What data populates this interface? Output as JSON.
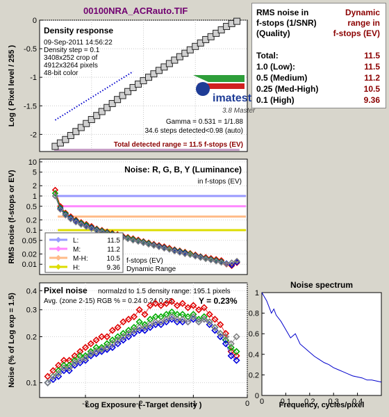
{
  "title": "00100NRA_ACRauto.TIF",
  "colors": {
    "background": "#d8d6cc",
    "plot_bg": "#ffffff",
    "red": "#e00000",
    "green": "#00aa00",
    "blue": "#0000dd",
    "luminance": "#808080",
    "dark_red_text": "#8b0000",
    "title_purple": "#700070",
    "imatest_blue": "#1e3c96"
  },
  "noise_table": {
    "header_left": [
      "RMS noise in",
      "f-stops (1/SNR)",
      "(Quality)"
    ],
    "header_right": [
      "Dynamic",
      "range in",
      "f-stops (EV)"
    ],
    "rows": [
      {
        "label": "Total:",
        "value": "11.5"
      },
      {
        "label": "1.0  (Low):",
        "value": "11.5"
      },
      {
        "label": "0.5  (Medium)",
        "value": "11.2"
      },
      {
        "label": "0.25 (Med-High)",
        "value": "10.5"
      },
      {
        "label": "0.1  (High)",
        "value": "9.36"
      }
    ]
  },
  "chart_data": [
    {
      "type": "line",
      "id": "density_response",
      "title": "Density response",
      "info": [
        "09-Sep-2011 14:56:22",
        "Density step = 0.1",
        "3408x252 crop of",
        "4912x3264 pixels",
        "48-bit color"
      ],
      "ylabel": "Log ( Pixel level / 255 )",
      "xlim": [
        -4,
        0
      ],
      "ylim": [
        -2.3,
        0
      ],
      "yticks": [
        0,
        -0.5,
        -1,
        -1.5,
        -2
      ],
      "yticklabels": [
        "0",
        "-0.5",
        "-1",
        "-1.5",
        "-2"
      ],
      "gamma_text": "Gamma = 0.531 = 1/1.88",
      "steps_text": "34.6 steps detected<0.98 (auto)",
      "range_text": "Total detected range = 11.5 f-stops (EV)",
      "logo_text": "imatest",
      "version_text": "3.8  Master",
      "series": [
        {
          "style": "squares",
          "x": [
            -3.7,
            -3.6,
            -3.5,
            -3.4,
            -3.3,
            -3.2,
            -3.1,
            -3.0,
            -2.9,
            -2.8,
            -2.7,
            -2.6,
            -2.5,
            -2.4,
            -2.3,
            -2.2,
            -2.1,
            -2.0,
            -1.9,
            -1.8,
            -1.7,
            -1.6,
            -1.5,
            -1.4,
            -1.3,
            -1.2,
            -1.1,
            -1.0,
            -0.9,
            -0.8,
            -0.7,
            -0.6,
            -0.5,
            -0.4,
            -0.3,
            -0.2
          ],
          "y": [
            -2.21,
            -2.15,
            -2.09,
            -2.02,
            -1.95,
            -1.88,
            -1.81,
            -1.74,
            -1.67,
            -1.6,
            -1.53,
            -1.46,
            -1.39,
            -1.32,
            -1.25,
            -1.18,
            -1.12,
            -1.06,
            -1.0,
            -0.94,
            -0.88,
            -0.82,
            -0.76,
            -0.7,
            -0.64,
            -0.58,
            -0.52,
            -0.46,
            -0.4,
            -0.34,
            -0.29,
            -0.23,
            -0.17,
            -0.11,
            -0.06,
            -0.02
          ]
        },
        {
          "style": "dotted",
          "x": [
            -3.7,
            -2.2
          ],
          "y": [
            -1.75,
            -0.9
          ]
        }
      ]
    },
    {
      "type": "scatter",
      "id": "rms_noise",
      "title": "Noise: R, G, B, Y (Luminance)",
      "subtitle": "in f-stops (EV)",
      "ylabel": "RMS noise (f-stops or EV)",
      "yscale": "log",
      "xlim": [
        -4,
        0
      ],
      "ylim": [
        0.005,
        12
      ],
      "yticks": [
        10,
        5,
        2,
        1,
        0.5,
        0.2,
        0.1,
        0.05,
        0.02,
        0.01
      ],
      "yticklabels": [
        "10",
        "5",
        "2",
        "1",
        "0.5",
        "0.2",
        "0.1",
        "0.05",
        "0.02",
        "0.01"
      ],
      "ref_lines": [
        {
          "name": "L:",
          "value": "11.5",
          "level": 1.0,
          "color": "#9999ff"
        },
        {
          "name": "M:",
          "value": "11.2",
          "level": 0.5,
          "color": "#ff88ff"
        },
        {
          "name": "M-H:",
          "value": "10.5",
          "level": 0.25,
          "color": "#ffbb88"
        },
        {
          "name": "H:",
          "value": "9.36",
          "level": 0.1,
          "color": "#dddd00"
        }
      ],
      "legend_note_1": "f-stops (EV)",
      "legend_note_2": "Dynamic Range",
      "x": [
        -3.7,
        -3.6,
        -3.5,
        -3.4,
        -3.3,
        -3.2,
        -3.1,
        -3.0,
        -2.9,
        -2.8,
        -2.7,
        -2.6,
        -2.5,
        -2.4,
        -2.3,
        -2.2,
        -2.1,
        -2.0,
        -1.9,
        -1.8,
        -1.7,
        -1.6,
        -1.5,
        -1.4,
        -1.3,
        -1.2,
        -1.1,
        -1.0,
        -0.9,
        -0.8,
        -0.7,
        -0.6,
        -0.5,
        -0.4,
        -0.3,
        -0.2
      ],
      "series": [
        {
          "name": "R",
          "color": "#e00000",
          "y": [
            1.5,
            0.5,
            0.32,
            0.25,
            0.2,
            0.17,
            0.15,
            0.13,
            0.11,
            0.1,
            0.09,
            0.082,
            0.075,
            0.068,
            0.062,
            0.057,
            0.052,
            0.047,
            0.043,
            0.039,
            0.036,
            0.033,
            0.03,
            0.027,
            0.025,
            0.023,
            0.021,
            0.019,
            0.017,
            0.016,
            0.015,
            0.014,
            0.013,
            0.01,
            0.009,
            0.011
          ]
        },
        {
          "name": "G",
          "color": "#00aa00",
          "y": [
            1.2,
            0.45,
            0.3,
            0.23,
            0.19,
            0.16,
            0.14,
            0.12,
            0.105,
            0.095,
            0.086,
            0.078,
            0.071,
            0.064,
            0.059,
            0.054,
            0.049,
            0.045,
            0.041,
            0.037,
            0.034,
            0.031,
            0.028,
            0.026,
            0.024,
            0.022,
            0.02,
            0.018,
            0.0165,
            0.015,
            0.014,
            0.013,
            0.012,
            0.0105,
            0.0095,
            0.012
          ]
        },
        {
          "name": "B",
          "color": "#0000dd",
          "y": [
            1.0,
            0.42,
            0.28,
            0.22,
            0.18,
            0.15,
            0.13,
            0.115,
            0.1,
            0.09,
            0.082,
            0.074,
            0.068,
            0.062,
            0.056,
            0.051,
            0.047,
            0.043,
            0.039,
            0.036,
            0.033,
            0.03,
            0.027,
            0.025,
            0.023,
            0.021,
            0.019,
            0.0175,
            0.016,
            0.0145,
            0.0135,
            0.0125,
            0.0115,
            0.0105,
            0.0095,
            0.0115
          ]
        },
        {
          "name": "Y",
          "color": "#808080",
          "y": [
            1.0,
            0.4,
            0.27,
            0.21,
            0.17,
            0.145,
            0.125,
            0.11,
            0.097,
            0.088,
            0.08,
            0.072,
            0.066,
            0.06,
            0.055,
            0.05,
            0.046,
            0.042,
            0.038,
            0.035,
            0.032,
            0.029,
            0.027,
            0.024,
            0.022,
            0.02,
            0.019,
            0.017,
            0.0155,
            0.0143,
            0.0132,
            0.0122,
            0.0112,
            0.0102,
            0.0112,
            0.0125
          ]
        }
      ]
    },
    {
      "type": "scatter",
      "id": "pixel_noise",
      "title": "Pixel noise",
      "note": "normalzd to 1.5 density range: 195.1 pixels",
      "avg_text": "Avg. (zone 2-15) RGB % = 0.24  0.24  0.23;",
      "y_text": "Y = 0.23%",
      "ylabel": "Noise (% of Log exp = 1.5)",
      "xlabel": "Log Exposure ( -Target density )",
      "yscale": "log",
      "xlim": [
        -3.85,
        0
      ],
      "ylim": [
        0.08,
        0.45
      ],
      "xticks": [
        -3,
        -2,
        -1,
        0
      ],
      "xticklabels": [
        "-3",
        "-2",
        "-1",
        "0"
      ],
      "yticks": [
        0.1,
        0.2,
        0.3,
        0.4
      ],
      "yticklabels": [
        "0.1",
        "0.2",
        "0.3",
        "0.4"
      ],
      "x": [
        -3.7,
        -3.6,
        -3.5,
        -3.4,
        -3.3,
        -3.2,
        -3.1,
        -3.0,
        -2.9,
        -2.8,
        -2.7,
        -2.6,
        -2.5,
        -2.4,
        -2.3,
        -2.2,
        -2.1,
        -2.0,
        -1.9,
        -1.8,
        -1.7,
        -1.6,
        -1.5,
        -1.4,
        -1.3,
        -1.2,
        -1.1,
        -1.0,
        -0.9,
        -0.8,
        -0.7,
        -0.6,
        -0.5,
        -0.4,
        -0.3,
        -0.2
      ],
      "series": [
        {
          "name": "R",
          "color": "#e00000",
          "y": [
            0.11,
            0.12,
            0.13,
            0.14,
            0.14,
            0.15,
            0.16,
            0.17,
            0.18,
            0.19,
            0.2,
            0.2,
            0.22,
            0.23,
            0.25,
            0.26,
            0.27,
            0.3,
            0.28,
            0.32,
            0.33,
            0.32,
            0.33,
            0.34,
            0.32,
            0.33,
            0.31,
            0.32,
            0.3,
            0.31,
            0.28,
            0.26,
            0.24,
            0.21,
            0.16,
            0.15
          ]
        },
        {
          "name": "G",
          "color": "#00aa00",
          "y": [
            0.1,
            0.11,
            0.12,
            0.13,
            0.13,
            0.14,
            0.15,
            0.15,
            0.16,
            0.17,
            0.17,
            0.18,
            0.19,
            0.2,
            0.21,
            0.22,
            0.23,
            0.25,
            0.24,
            0.26,
            0.27,
            0.27,
            0.28,
            0.29,
            0.28,
            0.28,
            0.27,
            0.28,
            0.26,
            0.27,
            0.25,
            0.23,
            0.21,
            0.19,
            0.17,
            0.16
          ]
        },
        {
          "name": "B",
          "color": "#0000dd",
          "y": [
            0.1,
            0.105,
            0.11,
            0.12,
            0.12,
            0.13,
            0.135,
            0.14,
            0.15,
            0.155,
            0.16,
            0.165,
            0.17,
            0.18,
            0.19,
            0.2,
            0.21,
            0.22,
            0.22,
            0.23,
            0.24,
            0.24,
            0.25,
            0.26,
            0.25,
            0.25,
            0.25,
            0.26,
            0.25,
            0.26,
            0.24,
            0.22,
            0.2,
            0.18,
            0.15,
            0.14
          ]
        },
        {
          "name": "Y",
          "color": "#808080",
          "y": [
            0.1,
            0.11,
            0.115,
            0.125,
            0.125,
            0.135,
            0.14,
            0.145,
            0.155,
            0.16,
            0.165,
            0.17,
            0.18,
            0.19,
            0.2,
            0.21,
            0.22,
            0.23,
            0.23,
            0.24,
            0.25,
            0.25,
            0.26,
            0.27,
            0.26,
            0.26,
            0.25,
            0.27,
            0.25,
            0.26,
            0.25,
            0.23,
            0.21,
            0.2,
            0.18,
            0.2
          ]
        }
      ]
    },
    {
      "type": "line",
      "id": "noise_spectrum",
      "title": "Noise spectrum",
      "xlabel": "Frequency, cycles/pixel",
      "xlim": [
        0,
        0.5
      ],
      "ylim": [
        0,
        1
      ],
      "xticks": [
        0,
        0.1,
        0.2,
        0.3,
        0.4
      ],
      "xticklabels": [
        "0",
        "0.1",
        "0.2",
        "0.3",
        "0.4"
      ],
      "yticks": [
        0,
        0.2,
        0.4,
        0.6,
        0.8,
        1
      ],
      "yticklabels": [
        "0",
        "0.2",
        "0.4",
        "0.6",
        "0.8",
        "1"
      ],
      "series": [
        {
          "name": "spectrum",
          "color": "#0000cc",
          "x": [
            0,
            0.02,
            0.04,
            0.05,
            0.06,
            0.08,
            0.1,
            0.12,
            0.14,
            0.16,
            0.18,
            0.2,
            0.22,
            0.24,
            0.26,
            0.28,
            0.3,
            0.32,
            0.34,
            0.36,
            0.38,
            0.4,
            0.42,
            0.44,
            0.46,
            0.48,
            0.5
          ],
          "y": [
            1.0,
            0.92,
            0.8,
            0.84,
            0.78,
            0.72,
            0.64,
            0.56,
            0.6,
            0.5,
            0.46,
            0.42,
            0.38,
            0.35,
            0.32,
            0.3,
            0.27,
            0.25,
            0.23,
            0.21,
            0.19,
            0.18,
            0.17,
            0.15,
            0.15,
            0.14,
            0.13
          ]
        }
      ]
    }
  ]
}
